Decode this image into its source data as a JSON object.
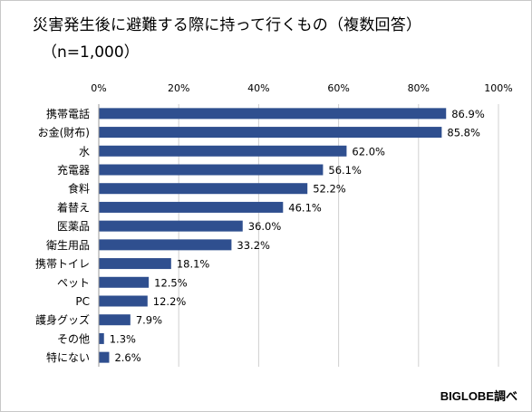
{
  "title": "災害発生後に避難する際に持って行くもの（複数回答）",
  "subtitle": "（n=1,000）",
  "source": "BIGLOBE調べ",
  "colors": {
    "bar": "#2f4f8f",
    "grid": "#d0d0d0"
  },
  "chart_data": {
    "type": "bar",
    "orientation": "horizontal",
    "title": "災害発生後に避難する際に持って行くもの（複数回答）",
    "subtitle": "（n=1,000）",
    "xlim": [
      0,
      100
    ],
    "x_ticks": [
      "0%",
      "20%",
      "40%",
      "60%",
      "80%",
      "100%"
    ],
    "x_tick_values": [
      0,
      20,
      40,
      60,
      80,
      100
    ],
    "axis_position": "top",
    "grid": true,
    "categories": [
      "携帯電話",
      "お金(財布)",
      "水",
      "充電器",
      "食料",
      "着替え",
      "医薬品",
      "衛生用品",
      "携帯トイレ",
      "ペット",
      "PC",
      "護身グッズ",
      "その他",
      "特にない"
    ],
    "values": [
      86.9,
      85.8,
      62.0,
      56.1,
      52.2,
      46.1,
      36.0,
      33.2,
      18.1,
      12.5,
      12.2,
      7.9,
      1.3,
      2.6
    ],
    "value_labels": [
      "86.9%",
      "85.8%",
      "62.0%",
      "56.1%",
      "52.2%",
      "46.1%",
      "36.0%",
      "33.2%",
      "18.1%",
      "12.5%",
      "12.2%",
      "7.9%",
      "1.3%",
      "2.6%"
    ]
  }
}
